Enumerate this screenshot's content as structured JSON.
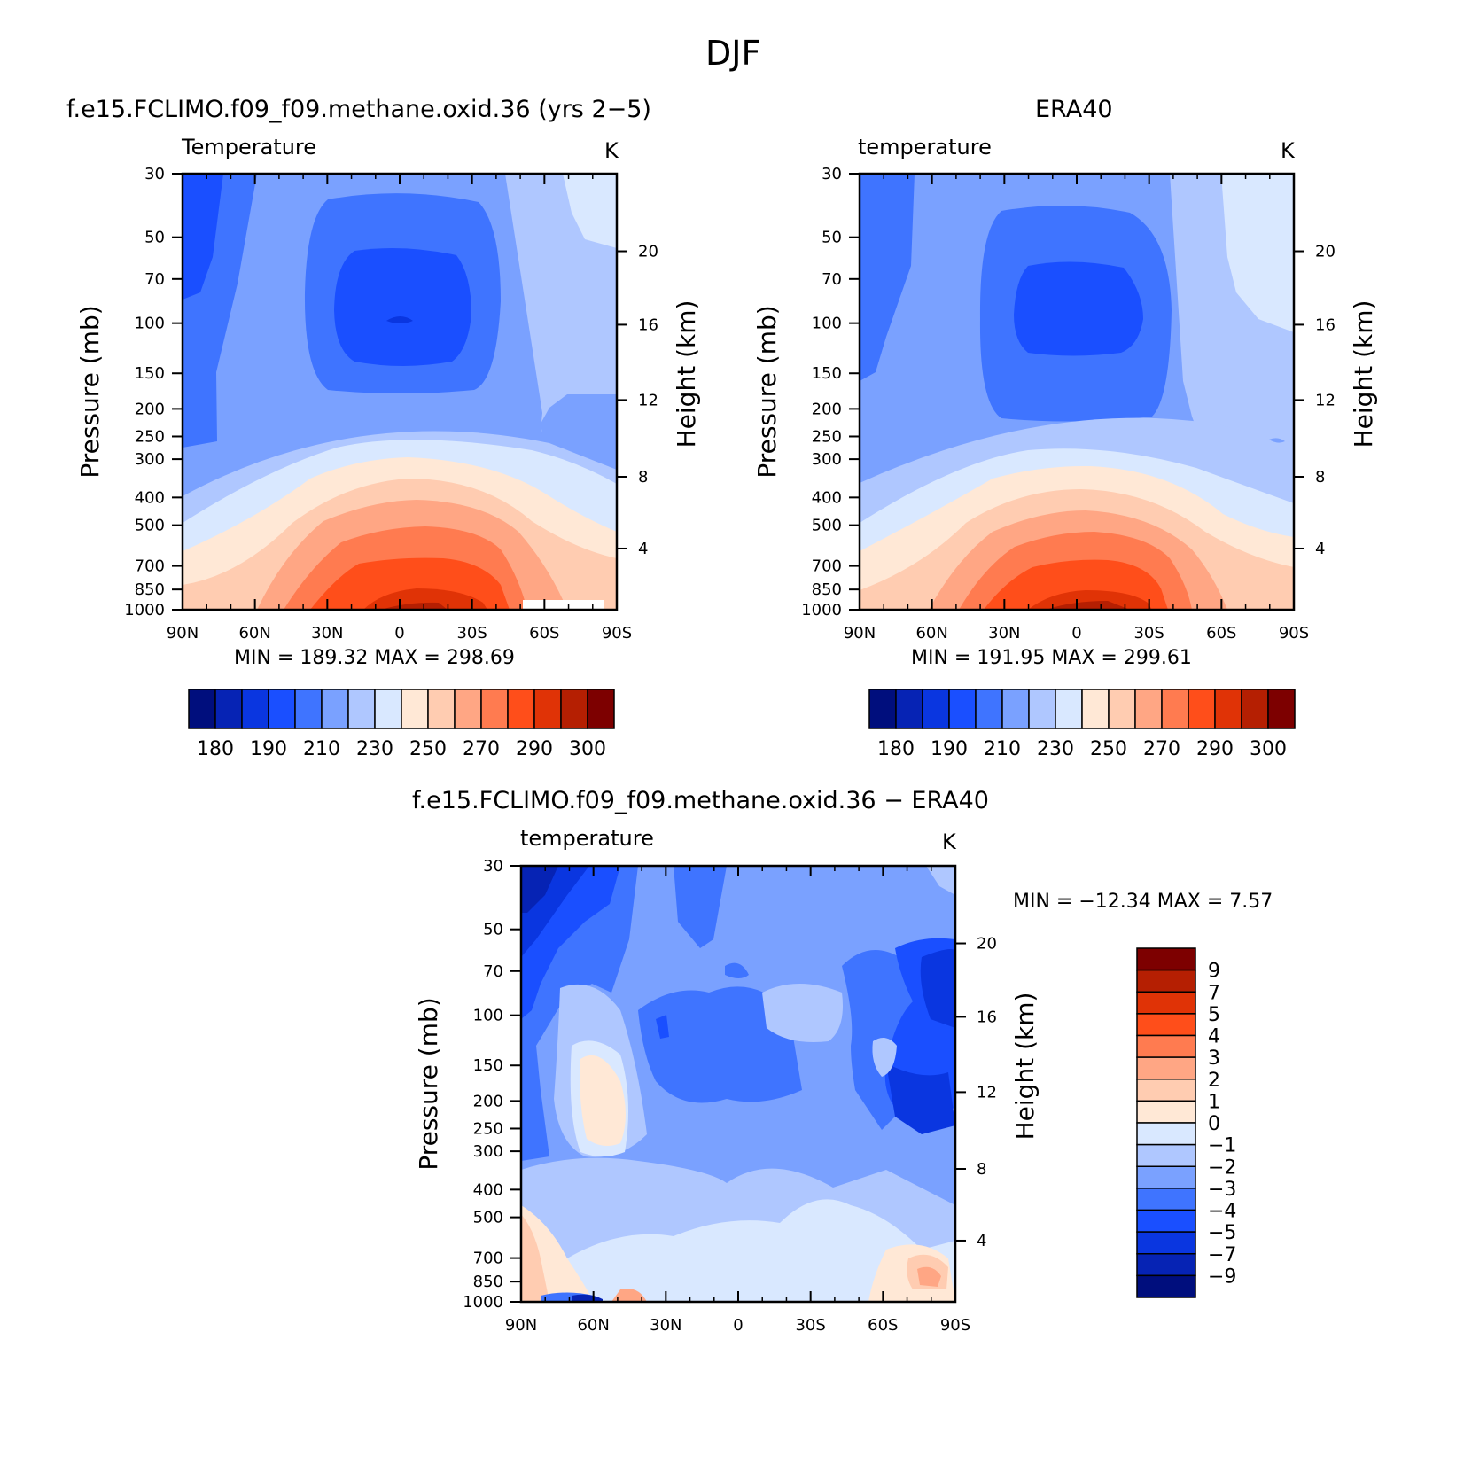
{
  "figure": {
    "title": "DJF"
  },
  "colors": {
    "temp_palette": [
      "#000e7d",
      "#0623b4",
      "#0a36e0",
      "#1a4fff",
      "#3f74ff",
      "#7aa1ff",
      "#afc7ff",
      "#d9e8ff",
      "#ffe8d6",
      "#ffccb1",
      "#ffa684",
      "#ff7b50",
      "#ff4e1a",
      "#e03306",
      "#b51f02",
      "#7d0000"
    ],
    "diff_palette": [
      "#000e7d",
      "#0623b4",
      "#0a36e0",
      "#1a4fff",
      "#3f74ff",
      "#7aa1ff",
      "#afc7ff",
      "#d9e8ff",
      "#ffe8d6",
      "#ffccb1",
      "#ffa684",
      "#ff7b50",
      "#ff4e1a",
      "#e03306",
      "#b51f02",
      "#7d0000"
    ]
  },
  "panels": {
    "model": {
      "title": "f.e15.FCLIMO.f09_f09.methane.oxid.36 (yrs 2−5)",
      "variable": "Temperature",
      "units": "K",
      "minmax": "MIN =  189.32   MAX =  298.69"
    },
    "obs": {
      "title": "ERA40",
      "variable": "temperature",
      "units": "K",
      "minmax": "MIN =  191.95   MAX =  299.61"
    },
    "diff": {
      "title": "f.e15.FCLIMO.f09_f09.methane.oxid.36 − ERA40",
      "variable": "temperature",
      "units": "K",
      "minmax": "MIN =  −12.34    MAX =      7.57"
    }
  },
  "chart_data": [
    {
      "type": "heatmap",
      "title": "f.e15.FCLIMO.f09_f09.methane.oxid.36 (yrs 2−5)",
      "subtitle": "Temperature",
      "units": "K",
      "x_ticks": [
        "90N",
        "60N",
        "30N",
        "0",
        "30S",
        "60S",
        "90S"
      ],
      "y_ticks": [
        "30",
        "50",
        "70",
        "100",
        "150",
        "200",
        "250",
        "300",
        "400",
        "500",
        "700",
        "850",
        "1000"
      ],
      "ylabel": "Pressure (mb)",
      "ylabel_right": "Height (km)",
      "y_right_ticks": [
        "4",
        "8",
        "12",
        "16",
        "20"
      ],
      "min": 189.32,
      "max": 298.69,
      "colorbar_ticks": [
        "180",
        "190",
        "210",
        "230",
        "250",
        "270",
        "290",
        "300"
      ]
    },
    {
      "type": "heatmap",
      "title": "ERA40",
      "subtitle": "temperature",
      "units": "K",
      "x_ticks": [
        "90N",
        "60N",
        "30N",
        "0",
        "30S",
        "60S",
        "90S"
      ],
      "y_ticks": [
        "30",
        "50",
        "70",
        "100",
        "150",
        "200",
        "250",
        "300",
        "400",
        "500",
        "700",
        "850",
        "1000"
      ],
      "ylabel": "Pressure (mb)",
      "ylabel_right": "Height (km)",
      "y_right_ticks": [
        "4",
        "8",
        "12",
        "16",
        "20"
      ],
      "min": 191.95,
      "max": 299.61,
      "colorbar_ticks": [
        "180",
        "190",
        "210",
        "230",
        "250",
        "270",
        "290",
        "300"
      ]
    },
    {
      "type": "heatmap",
      "title": "f.e15.FCLIMO.f09_f09.methane.oxid.36 − ERA40",
      "subtitle": "temperature",
      "units": "K",
      "x_ticks": [
        "90N",
        "60N",
        "30N",
        "0",
        "30S",
        "60S",
        "90S"
      ],
      "y_ticks": [
        "30",
        "50",
        "70",
        "100",
        "150",
        "200",
        "250",
        "300",
        "400",
        "500",
        "700",
        "850",
        "1000"
      ],
      "ylabel": "Pressure (mb)",
      "ylabel_right": "Height (km)",
      "y_right_ticks": [
        "4",
        "8",
        "12",
        "16",
        "20"
      ],
      "min": -12.34,
      "max": 7.57,
      "colorbar_ticks": [
        "9",
        "7",
        "5",
        "4",
        "3",
        "2",
        "1",
        "0",
        "−1",
        "−2",
        "−3",
        "−4",
        "−5",
        "−7",
        "−9"
      ]
    }
  ]
}
